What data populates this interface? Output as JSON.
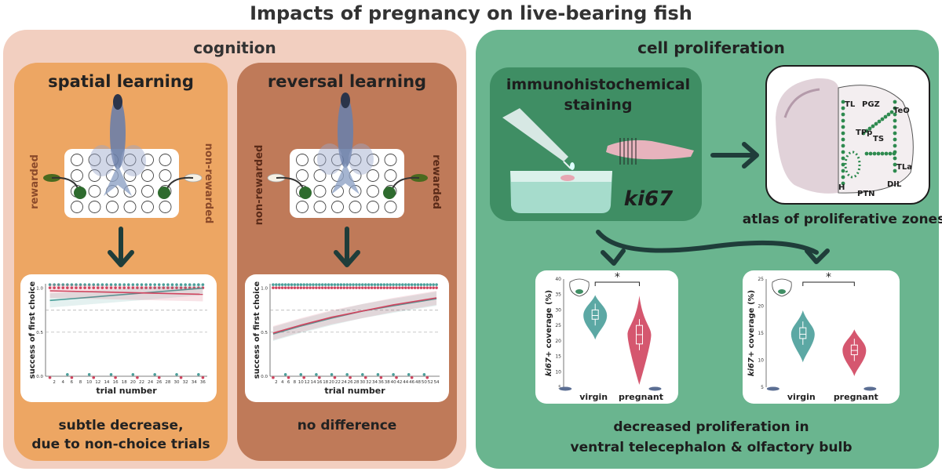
{
  "title": "Impacts of pregnancy on live-bearing fish",
  "colors": {
    "cognition_bg": "#f2cfc0",
    "spatial_bg": "#eda663",
    "reversal_bg": "#bf7a59",
    "cell_bg": "#6ab58f",
    "ihc_bg": "#3f8e64",
    "virgin": "#4a9f9a",
    "pregnant": "#d0455f",
    "arrow": "#1f3d3a"
  },
  "cognition": {
    "title": "cognition",
    "spatial": {
      "title": "spatial learning",
      "left_label": "rewarded",
      "right_label": "non-rewarded",
      "caption_line1": "subtle decrease,",
      "caption_line2": "due to non-choice trials"
    },
    "reversal": {
      "title": "reversal learning",
      "left_label": "non-rewarded",
      "right_label": "rewarded",
      "caption": "no difference"
    }
  },
  "cell": {
    "title": "cell proliferation",
    "ihc_line1": "immunohistochemical",
    "ihc_line2": "staining",
    "ki67": "ki67",
    "atlas_caption": "atlas of proliferative zones",
    "atlas_labels": [
      "TL",
      "PGZ",
      "TeO",
      "TPp",
      "TS",
      "TLa",
      "H",
      "PTN",
      "DIL"
    ],
    "caption_line1": "decreased proliferation in",
    "caption_line2": "ventral telecephalon & olfactory bulb"
  },
  "chart_data": [
    {
      "type": "line",
      "xlabel": "trial number",
      "ylabel": "success of first choice",
      "x_ticks": [
        2,
        4,
        6,
        8,
        10,
        12,
        14,
        16,
        18,
        20,
        22,
        24,
        26,
        28,
        30,
        32,
        34,
        36
      ],
      "y_ticks": [
        "0.0",
        "0.5",
        "1.0"
      ],
      "xlim": [
        0,
        37
      ],
      "ylim": [
        0,
        1.05
      ],
      "series": [
        {
          "color_key": "virgin",
          "x": [
            1,
            36
          ],
          "y": [
            0.86,
            1.0
          ]
        },
        {
          "color_key": "pregnant",
          "x": [
            1,
            36
          ],
          "y": [
            0.97,
            0.93
          ]
        }
      ]
    },
    {
      "type": "line",
      "xlabel": "trial number",
      "ylabel": "success of first choice",
      "x_ticks": [
        2,
        4,
        6,
        8,
        10,
        12,
        14,
        16,
        18,
        20,
        22,
        24,
        26,
        28,
        30,
        32,
        34,
        36,
        38,
        40,
        42,
        44,
        46,
        48,
        50,
        52,
        54
      ],
      "y_ticks": [
        "0.0",
        "0.5",
        "1.0"
      ],
      "xlim": [
        0,
        55
      ],
      "ylim": [
        0,
        1.05
      ],
      "series": [
        {
          "color_key": "virgin",
          "x": [
            1,
            10,
            20,
            30,
            40,
            54
          ],
          "y": [
            0.48,
            0.57,
            0.66,
            0.74,
            0.8,
            0.88
          ]
        },
        {
          "color_key": "pregnant",
          "x": [
            1,
            10,
            20,
            30,
            40,
            54
          ],
          "y": [
            0.49,
            0.58,
            0.67,
            0.74,
            0.81,
            0.89
          ]
        }
      ]
    },
    {
      "type": "violin",
      "ylabel_italic": "ki67+",
      "ylabel_rest": " coverage (%)",
      "y_ticks": [
        5,
        10,
        15,
        20,
        25,
        30,
        35,
        40
      ],
      "ylim": [
        5,
        40
      ],
      "categories": [
        "virgin",
        "pregnant"
      ],
      "medians": [
        28.2,
        22.0
      ],
      "iqr": [
        [
          27,
          30
        ],
        [
          19,
          25
        ]
      ],
      "significance": "*"
    },
    {
      "type": "violin",
      "ylabel_italic": "ki67+",
      "ylabel_rest": " coverage (%)",
      "y_ticks": [
        5,
        10,
        15,
        20,
        25
      ],
      "ylim": [
        5,
        25
      ],
      "categories": [
        "virgin",
        "pregnant"
      ],
      "medians": [
        14.8,
        11.8
      ],
      "iqr": [
        [
          14,
          16
        ],
        [
          11,
          12.8
        ]
      ],
      "significance": "*"
    }
  ]
}
